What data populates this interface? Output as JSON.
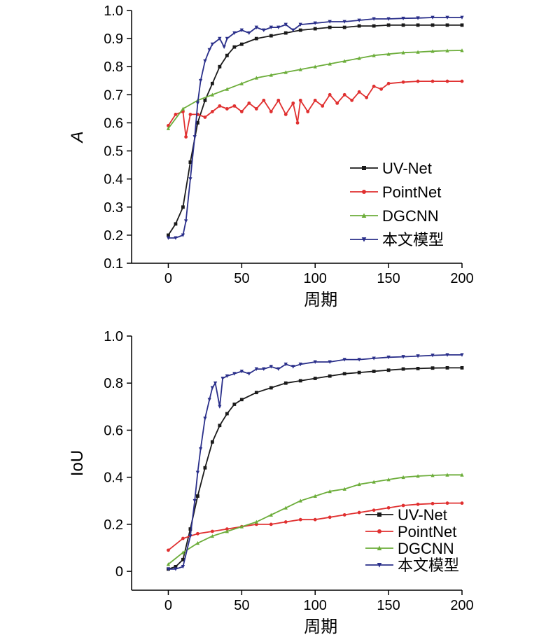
{
  "chart_data": [
    {
      "type": "line",
      "xlabel": "周期",
      "ylabel": "A",
      "xlim": [
        -25,
        200
      ],
      "ylim": [
        0.1,
        1.0
      ],
      "xticks": [
        0,
        50,
        100,
        150,
        200
      ],
      "yticks": [
        0.1,
        0.2,
        0.3,
        0.4,
        0.5,
        0.6,
        0.7,
        0.8,
        0.9,
        1.0
      ],
      "ytick_labels": [
        "0.1",
        "0.2",
        "0.3",
        "0.4",
        "0.5",
        "0.6",
        "0.7",
        "0.8",
        "0.9",
        "1.0"
      ],
      "grid": false,
      "legend_position": "center-right",
      "series": [
        {
          "name": "UV-Net",
          "color": "#1a1a1a",
          "marker": "square",
          "x": [
            0,
            5,
            10,
            15,
            20,
            25,
            30,
            35,
            40,
            45,
            50,
            60,
            70,
            80,
            90,
            100,
            110,
            120,
            130,
            140,
            150,
            160,
            170,
            180,
            190,
            200
          ],
          "y": [
            0.2,
            0.24,
            0.3,
            0.46,
            0.6,
            0.68,
            0.74,
            0.8,
            0.84,
            0.87,
            0.88,
            0.9,
            0.91,
            0.92,
            0.93,
            0.935,
            0.94,
            0.94,
            0.945,
            0.945,
            0.948,
            0.948,
            0.948,
            0.948,
            0.948,
            0.948
          ]
        },
        {
          "name": "PointNet",
          "color": "#e03030",
          "marker": "circle",
          "x": [
            0,
            5,
            10,
            12,
            15,
            20,
            25,
            30,
            35,
            40,
            45,
            50,
            55,
            60,
            65,
            70,
            75,
            80,
            85,
            88,
            90,
            95,
            100,
            105,
            110,
            115,
            120,
            125,
            130,
            135,
            140,
            145,
            150,
            160,
            170,
            180,
            190,
            200
          ],
          "y": [
            0.59,
            0.63,
            0.64,
            0.55,
            0.63,
            0.63,
            0.62,
            0.64,
            0.66,
            0.65,
            0.66,
            0.64,
            0.67,
            0.65,
            0.68,
            0.64,
            0.68,
            0.63,
            0.67,
            0.6,
            0.68,
            0.64,
            0.68,
            0.66,
            0.7,
            0.67,
            0.7,
            0.68,
            0.71,
            0.69,
            0.73,
            0.72,
            0.74,
            0.745,
            0.748,
            0.748,
            0.748,
            0.748
          ]
        },
        {
          "name": "DGCNN",
          "color": "#6cad3a",
          "marker": "triangle-up",
          "x": [
            0,
            10,
            20,
            30,
            40,
            50,
            60,
            70,
            80,
            90,
            100,
            110,
            120,
            130,
            140,
            150,
            160,
            170,
            180,
            190,
            200
          ],
          "y": [
            0.58,
            0.65,
            0.68,
            0.7,
            0.72,
            0.74,
            0.76,
            0.77,
            0.78,
            0.79,
            0.8,
            0.81,
            0.82,
            0.83,
            0.84,
            0.845,
            0.85,
            0.852,
            0.855,
            0.857,
            0.858
          ]
        },
        {
          "name": "本文模型",
          "color": "#2a2f8a",
          "marker": "triangle-down",
          "x": [
            0,
            5,
            10,
            12,
            15,
            18,
            20,
            22,
            25,
            28,
            30,
            35,
            38,
            40,
            45,
            50,
            55,
            60,
            65,
            70,
            75,
            80,
            85,
            90,
            100,
            110,
            120,
            130,
            140,
            150,
            160,
            170,
            180,
            190,
            200
          ],
          "y": [
            0.19,
            0.19,
            0.2,
            0.25,
            0.4,
            0.55,
            0.67,
            0.75,
            0.82,
            0.86,
            0.88,
            0.9,
            0.87,
            0.9,
            0.92,
            0.93,
            0.92,
            0.94,
            0.93,
            0.94,
            0.94,
            0.95,
            0.93,
            0.95,
            0.955,
            0.96,
            0.96,
            0.965,
            0.97,
            0.97,
            0.972,
            0.973,
            0.975,
            0.975,
            0.975
          ]
        }
      ]
    },
    {
      "type": "line",
      "xlabel": "周期",
      "ylabel": "IoU",
      "xlim": [
        -25,
        200
      ],
      "ylim": [
        -0.08,
        1.0
      ],
      "xticks": [
        0,
        50,
        100,
        150,
        200
      ],
      "yticks": [
        0,
        0.2,
        0.4,
        0.6,
        0.8,
        1.0
      ],
      "ytick_labels": [
        "0",
        "0.2",
        "0.4",
        "0.6",
        "0.8",
        "1.0"
      ],
      "grid": false,
      "legend_position": "bottom-right",
      "series": [
        {
          "name": "UV-Net",
          "color": "#1a1a1a",
          "marker": "square",
          "x": [
            0,
            5,
            10,
            15,
            20,
            25,
            30,
            35,
            40,
            45,
            50,
            60,
            70,
            80,
            90,
            100,
            110,
            120,
            130,
            140,
            150,
            160,
            170,
            180,
            190,
            200
          ],
          "y": [
            0.01,
            0.02,
            0.05,
            0.18,
            0.32,
            0.44,
            0.55,
            0.62,
            0.67,
            0.71,
            0.73,
            0.76,
            0.78,
            0.8,
            0.81,
            0.82,
            0.83,
            0.84,
            0.845,
            0.85,
            0.855,
            0.86,
            0.862,
            0.864,
            0.865,
            0.865
          ]
        },
        {
          "name": "PointNet",
          "color": "#e03030",
          "marker": "circle",
          "x": [
            0,
            10,
            20,
            30,
            40,
            50,
            60,
            70,
            80,
            90,
            100,
            110,
            120,
            130,
            140,
            150,
            160,
            170,
            180,
            190,
            200
          ],
          "y": [
            0.09,
            0.14,
            0.16,
            0.17,
            0.18,
            0.19,
            0.2,
            0.2,
            0.21,
            0.22,
            0.22,
            0.23,
            0.24,
            0.25,
            0.26,
            0.27,
            0.28,
            0.285,
            0.288,
            0.29,
            0.29
          ]
        },
        {
          "name": "DGCNN",
          "color": "#6cad3a",
          "marker": "triangle-up",
          "x": [
            0,
            10,
            20,
            30,
            40,
            50,
            60,
            70,
            80,
            90,
            100,
            110,
            120,
            130,
            140,
            150,
            160,
            170,
            180,
            190,
            200
          ],
          "y": [
            0.03,
            0.08,
            0.12,
            0.15,
            0.17,
            0.19,
            0.21,
            0.24,
            0.27,
            0.3,
            0.32,
            0.34,
            0.35,
            0.37,
            0.38,
            0.39,
            0.4,
            0.405,
            0.408,
            0.41,
            0.41
          ]
        },
        {
          "name": "本文模型",
          "color": "#2a2f8a",
          "marker": "triangle-down",
          "x": [
            0,
            5,
            10,
            15,
            18,
            20,
            22,
            25,
            28,
            30,
            32,
            35,
            37,
            40,
            45,
            50,
            55,
            60,
            65,
            70,
            75,
            80,
            85,
            90,
            100,
            110,
            120,
            130,
            140,
            150,
            160,
            170,
            180,
            190,
            200
          ],
          "y": [
            0.01,
            0.01,
            0.02,
            0.15,
            0.3,
            0.42,
            0.52,
            0.65,
            0.73,
            0.78,
            0.8,
            0.7,
            0.82,
            0.83,
            0.84,
            0.85,
            0.84,
            0.86,
            0.86,
            0.87,
            0.86,
            0.88,
            0.87,
            0.88,
            0.89,
            0.89,
            0.9,
            0.9,
            0.905,
            0.91,
            0.912,
            0.915,
            0.918,
            0.92,
            0.92
          ]
        }
      ]
    }
  ]
}
